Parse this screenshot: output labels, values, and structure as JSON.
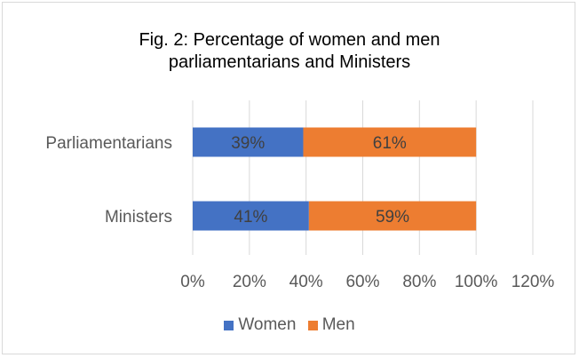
{
  "chart_data": {
    "type": "bar",
    "orientation": "horizontal",
    "stacked": true,
    "title_lines": [
      "Fig. 2: Percentage of women and men",
      "parliamentarians and Ministers"
    ],
    "categories": [
      "Parliamentarians",
      "Ministers"
    ],
    "series": [
      {
        "name": "Women",
        "color": "#4472c4",
        "values": [
          39,
          41
        ],
        "labels": [
          "39%",
          "41%"
        ]
      },
      {
        "name": "Men",
        "color": "#ed7d31",
        "values": [
          61,
          59
        ],
        "labels": [
          "61%",
          "59%"
        ]
      }
    ],
    "x_ticks": [
      "0%",
      "20%",
      "40%",
      "60%",
      "80%",
      "100%",
      "120%"
    ],
    "xlim": [
      0,
      120
    ],
    "grid": true,
    "legend_position": "bottom"
  }
}
